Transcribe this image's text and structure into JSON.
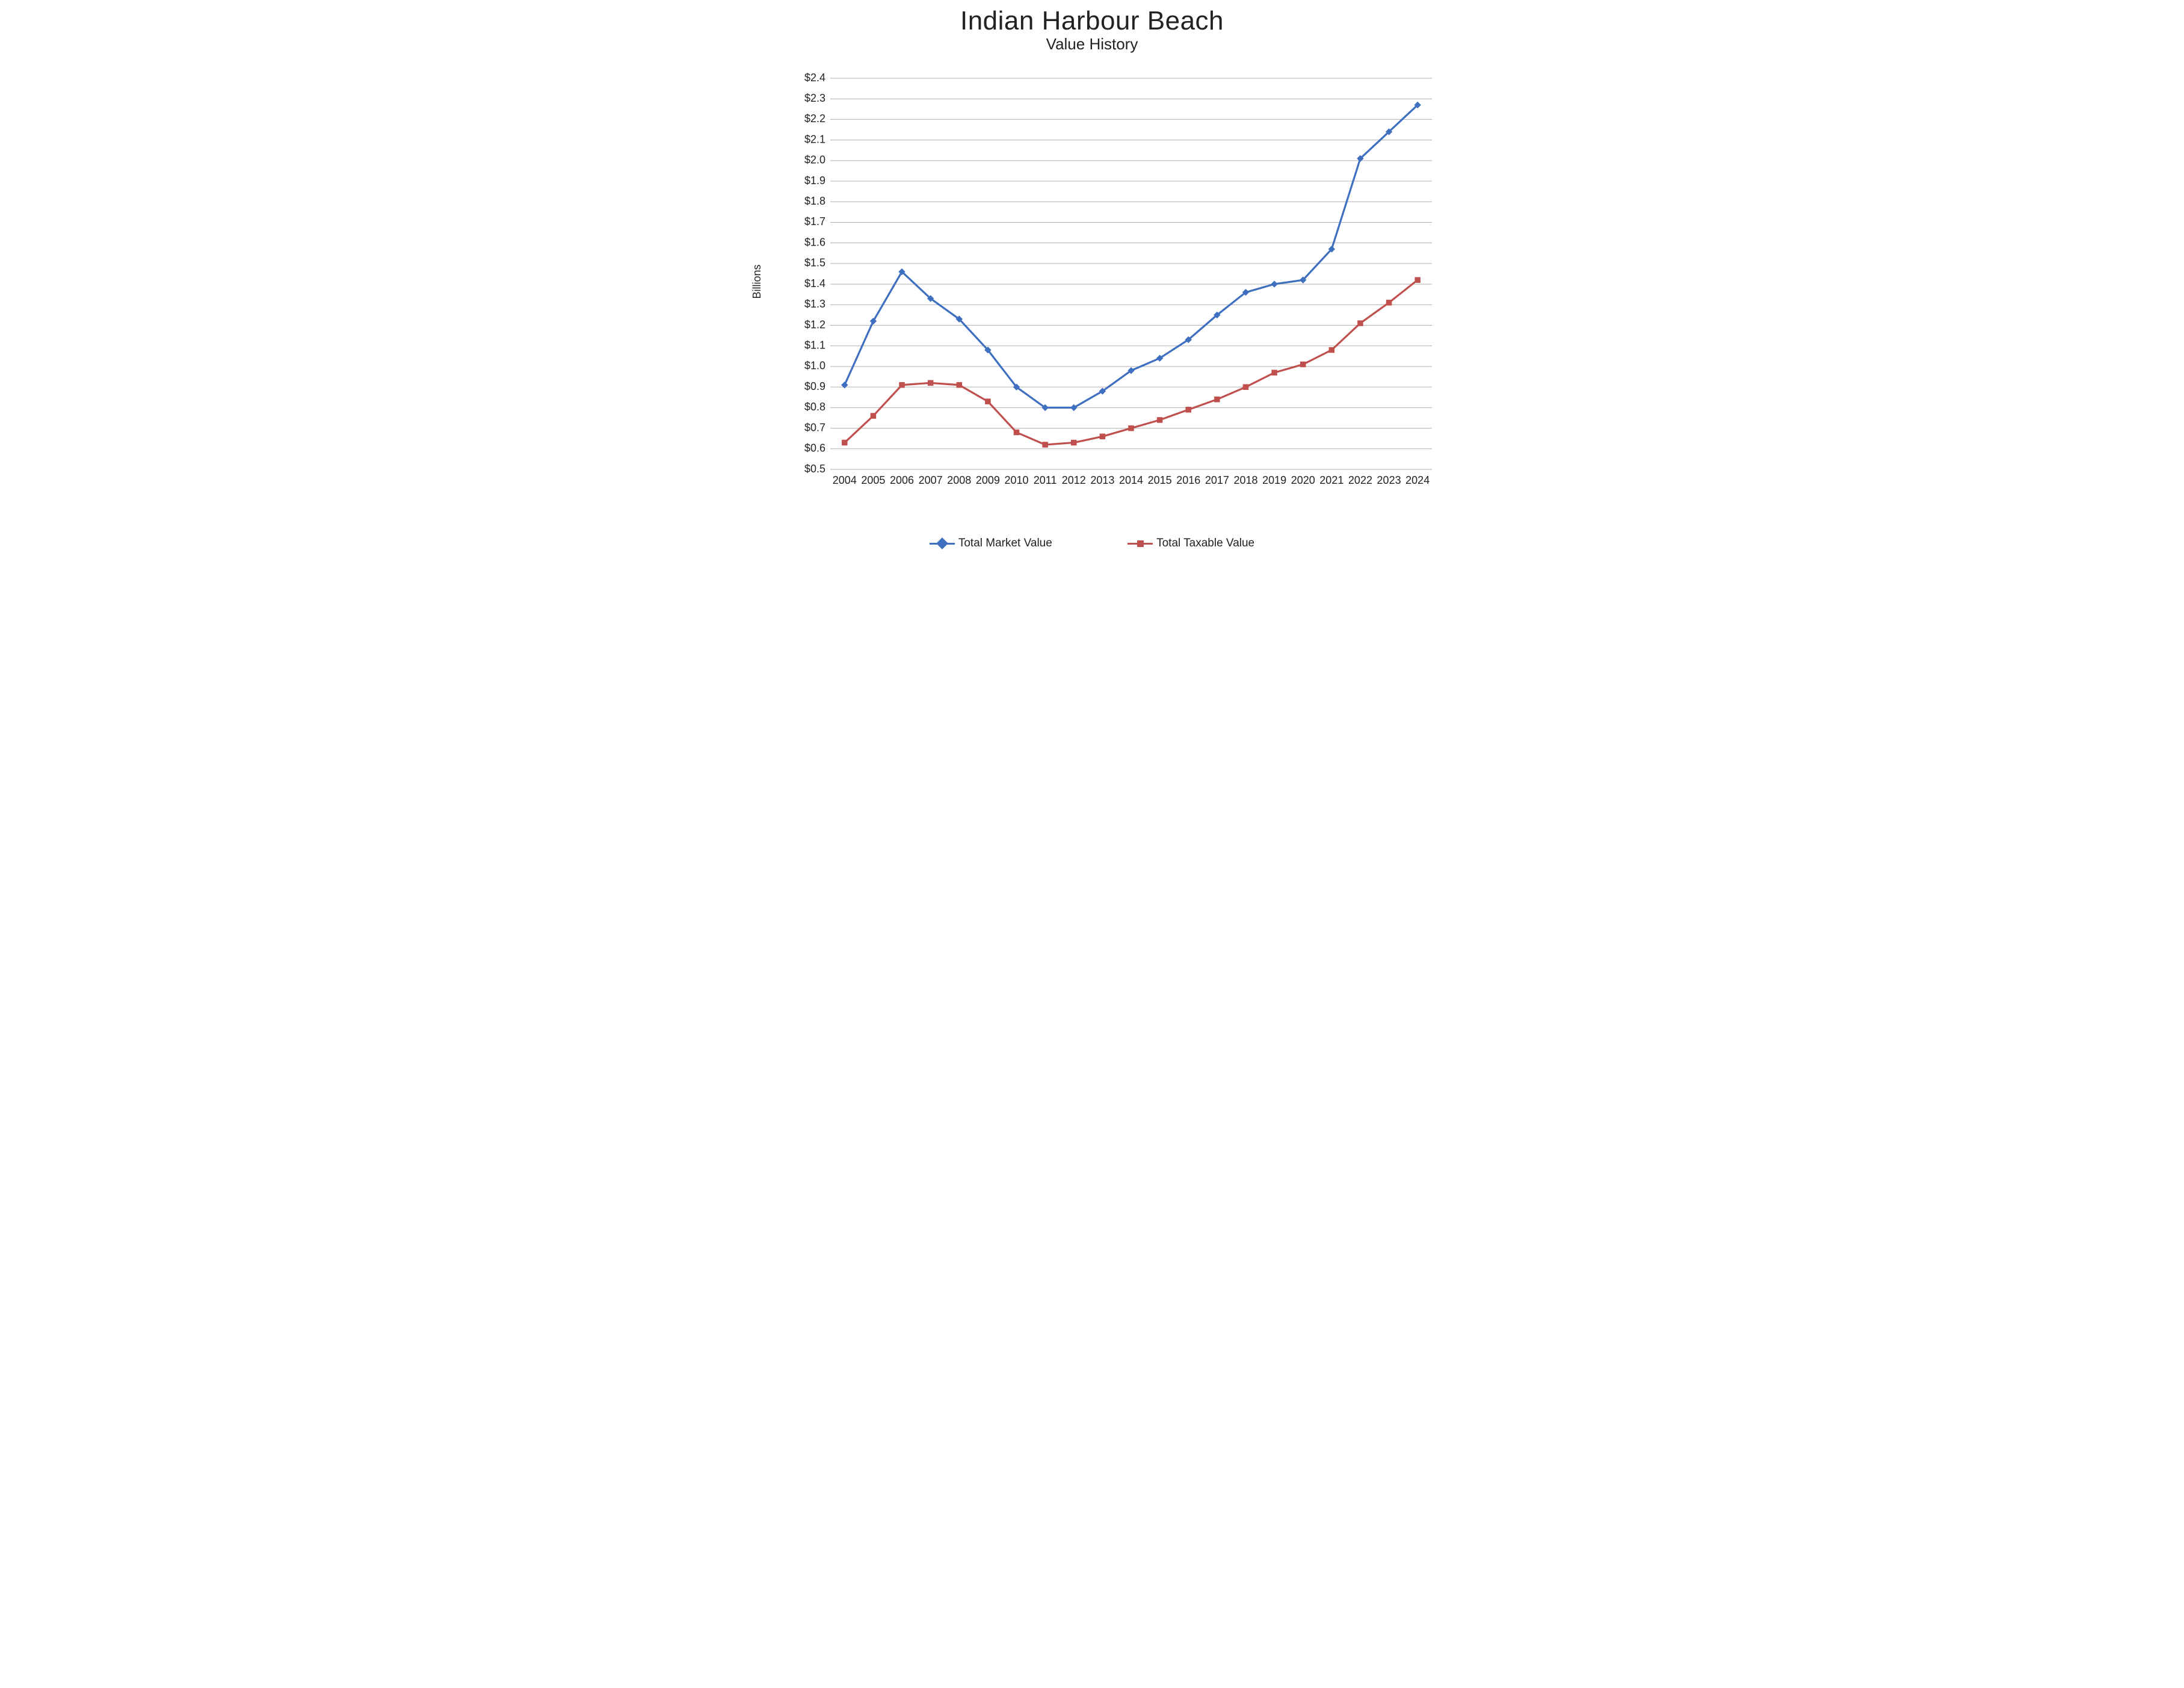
{
  "title": "Indian Harbour Beach",
  "subtitle": "Value History",
  "yaxis_label": "Billions",
  "chart": {
    "type": "line",
    "background_color": "#ffffff",
    "grid_color": "#b0b0b0",
    "text_color": "#222222",
    "title_fontsize": 44,
    "subtitle_fontsize": 26,
    "label_fontsize": 18,
    "tick_fontsize": 18,
    "legend_fontsize": 19,
    "line_width": 3.2,
    "marker_size": 10,
    "ylim": [
      0.5,
      2.4
    ],
    "ytick_step": 0.1,
    "ytick_prefix": "$",
    "ytick_decimals": 1,
    "categories": [
      "2004",
      "2005",
      "2006",
      "2007",
      "2008",
      "2009",
      "2010",
      "2011",
      "2012",
      "2013",
      "2014",
      "2015",
      "2016",
      "2017",
      "2018",
      "2019",
      "2020",
      "2021",
      "2022",
      "2023",
      "2024"
    ],
    "series": [
      {
        "name": "Total Market Value",
        "color": "#3f6fbf",
        "marker": "diamond",
        "values": [
          0.91,
          1.22,
          1.46,
          1.33,
          1.23,
          1.08,
          0.9,
          0.8,
          0.8,
          0.88,
          0.98,
          1.04,
          1.13,
          1.25,
          1.36,
          1.4,
          1.42,
          1.57,
          2.01,
          2.14,
          2.27
        ]
      },
      {
        "name": "Total Taxable Value",
        "color": "#c0504d",
        "marker": "square",
        "values": [
          0.63,
          0.76,
          0.91,
          0.92,
          0.91,
          0.83,
          0.68,
          0.62,
          0.63,
          0.66,
          0.7,
          0.74,
          0.79,
          0.84,
          0.9,
          0.97,
          1.01,
          1.08,
          1.21,
          1.31,
          1.42
        ]
      }
    ]
  },
  "legend": {
    "items": [
      {
        "label": "Total Market Value"
      },
      {
        "label": "Total Taxable Value"
      }
    ]
  }
}
